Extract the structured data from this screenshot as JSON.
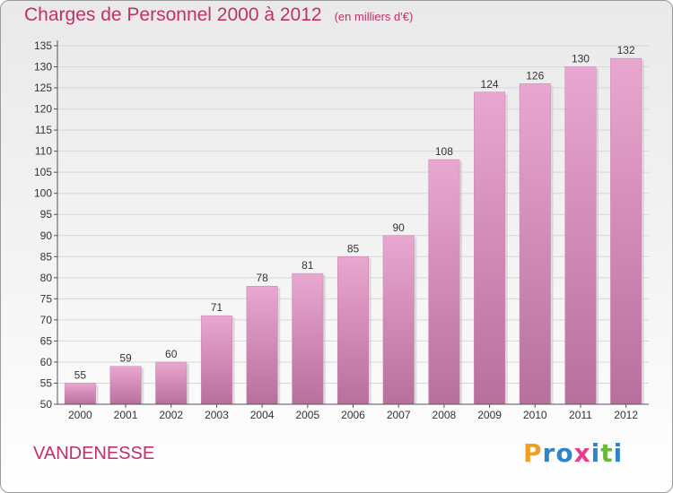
{
  "chart_data": {
    "type": "bar",
    "title": "Charges de Personnel 2000 à 2012",
    "subtitle": "(en milliers d'€)",
    "categories": [
      "2000",
      "2001",
      "2002",
      "2003",
      "2004",
      "2005",
      "2006",
      "2007",
      "2008",
      "2009",
      "2010",
      "2011",
      "2012"
    ],
    "values": [
      55,
      59,
      60,
      71,
      78,
      81,
      85,
      90,
      108,
      124,
      126,
      130,
      132
    ],
    "ylim": [
      50,
      135
    ],
    "yticks": [
      50,
      55,
      60,
      65,
      70,
      75,
      80,
      85,
      90,
      95,
      100,
      105,
      110,
      115,
      120,
      125,
      130,
      135
    ],
    "grid": true,
    "bar_color": "#d98fbc",
    "title_color": "#c0306a"
  },
  "commune": "VANDENESSE",
  "logo": {
    "letters": [
      {
        "ch": "P",
        "color": "#f0a020"
      },
      {
        "ch": "r",
        "color": "#2c86c8"
      },
      {
        "ch": "o",
        "color": "#2c86c8"
      },
      {
        "ch": "x",
        "color": "#e83c8c"
      },
      {
        "ch": "i",
        "color": "#2c86c8"
      },
      {
        "ch": "t",
        "color": "#6cb83c"
      },
      {
        "ch": "i",
        "color": "#2c86c8"
      }
    ]
  }
}
